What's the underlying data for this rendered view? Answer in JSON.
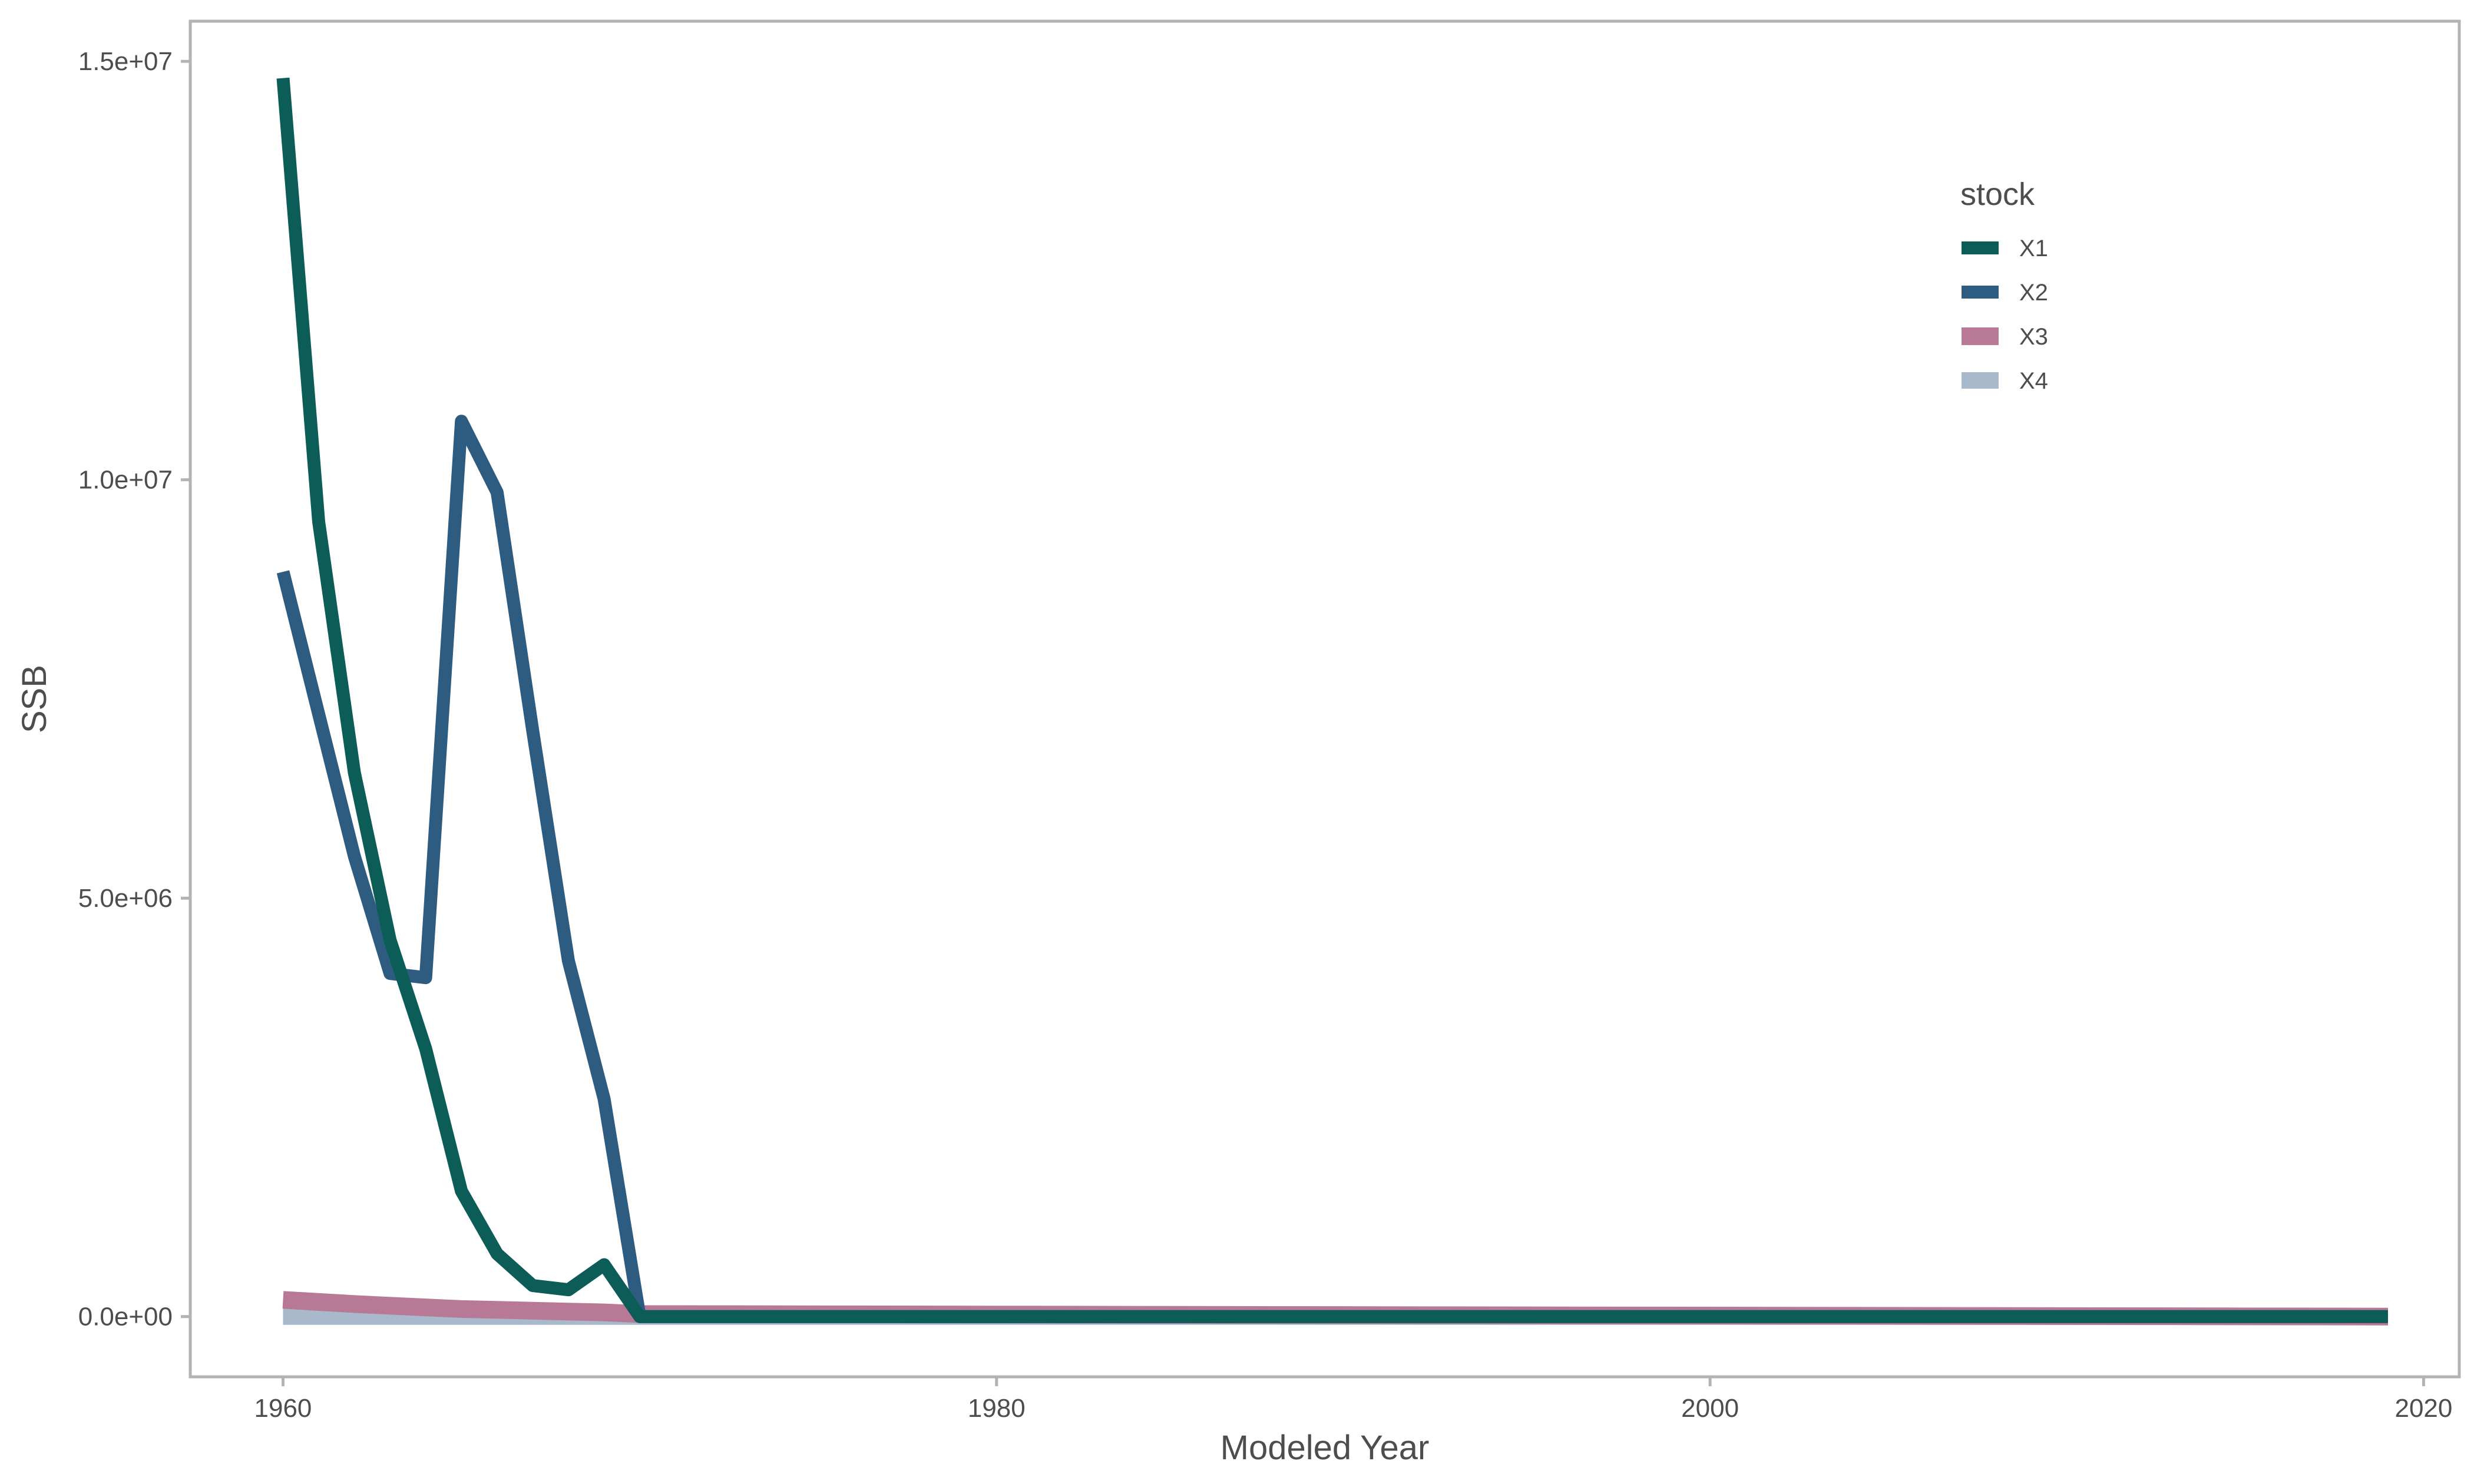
{
  "chart_data": {
    "type": "line",
    "xlabel": "Modeled Year",
    "ylabel": "SSB",
    "xlim": [
      1957.4,
      2021.0
    ],
    "ylim": [
      -720000,
      15480000
    ],
    "x_ticks": [
      1960,
      1980,
      2000,
      2020
    ],
    "x_tick_labels": [
      "1960",
      "1980",
      "2000",
      "2020"
    ],
    "y_ticks": [
      0,
      5000000,
      10000000,
      15000000
    ],
    "y_tick_labels": [
      "0.0e+00",
      "5.0e+06",
      "1.0e+07",
      "1.5e+07"
    ],
    "legend": {
      "title": "stock",
      "position": "top-right"
    },
    "grid": false,
    "series": [
      {
        "name": "X1",
        "color": "#0c5c57",
        "x": [
          1960,
          1961,
          1962,
          1963,
          1964,
          1965,
          1966,
          1967,
          1968,
          1969,
          1970,
          2019
        ],
        "y": [
          14800000,
          9500000,
          6500000,
          4500000,
          3200000,
          1500000,
          750000,
          370000,
          320000,
          620000,
          0,
          0
        ]
      },
      {
        "name": "X2",
        "color": "#2e5c80",
        "x": [
          1960,
          1961,
          1962,
          1963,
          1964,
          1965,
          1966,
          1967,
          1968,
          1969,
          1970,
          2019
        ],
        "y": [
          8900000,
          7200000,
          5500000,
          4100000,
          4050000,
          10700000,
          9850000,
          7000000,
          4250000,
          2600000,
          0,
          0
        ]
      },
      {
        "name": "X3",
        "color": "#b77995",
        "x": [
          1960,
          1962,
          1964,
          1965,
          1966,
          1967,
          1968,
          1969,
          1970,
          2019
        ],
        "y": [
          200000,
          150000,
          110000,
          90000,
          80000,
          70000,
          60000,
          50000,
          30000,
          0
        ]
      },
      {
        "name": "X4",
        "color": "#a7b9cb",
        "x": [
          1960,
          2019
        ],
        "y": [
          0,
          0
        ]
      }
    ]
  }
}
